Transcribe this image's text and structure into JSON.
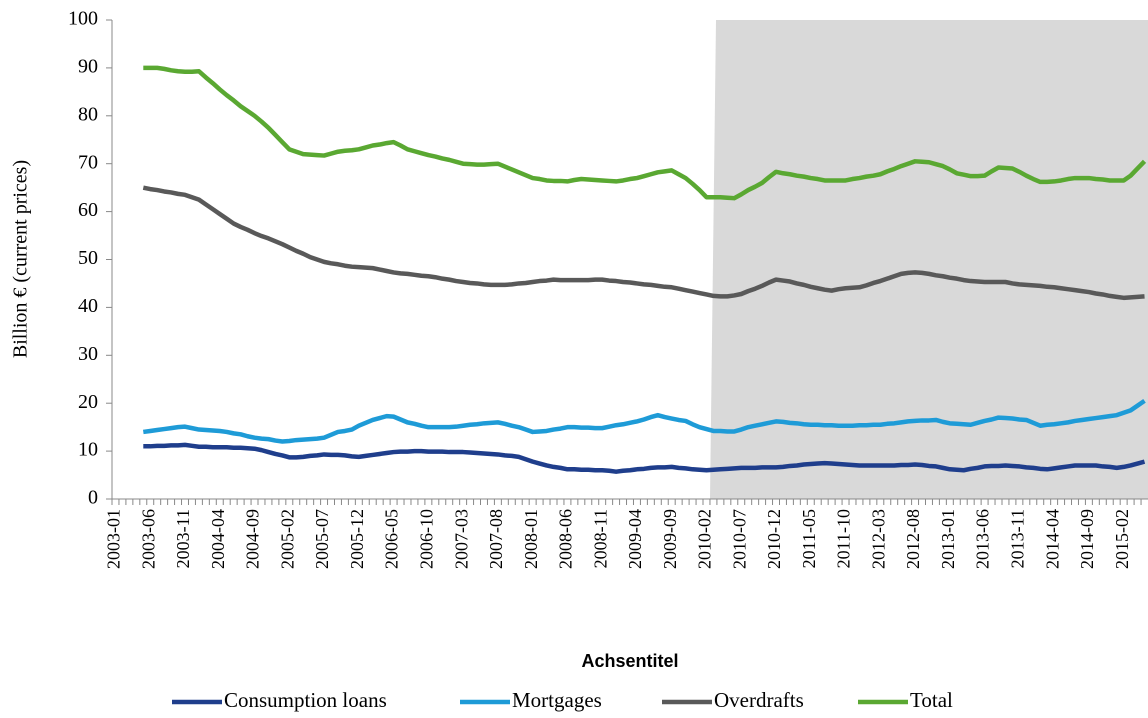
{
  "chart_data": {
    "type": "line",
    "x_label": "Achsentitel",
    "y_label": "Billion € (current prices)",
    "categories": [
      "2003-01",
      null,
      null,
      null,
      null,
      "2003-06",
      null,
      null,
      null,
      null,
      "2003-11",
      null,
      null,
      null,
      null,
      "2004-04",
      null,
      null,
      null,
      null,
      "2004-09",
      null,
      null,
      null,
      null,
      "2005-02",
      null,
      null,
      null,
      null,
      "2005-07",
      null,
      null,
      null,
      null,
      "2005-12",
      null,
      null,
      null,
      null,
      "2006-05",
      null,
      null,
      null,
      null,
      "2006-10",
      null,
      null,
      null,
      null,
      "2007-03",
      null,
      null,
      null,
      null,
      "2007-08",
      null,
      null,
      null,
      null,
      "2008-01",
      null,
      null,
      null,
      null,
      "2008-06",
      null,
      null,
      null,
      null,
      "2008-11",
      null,
      null,
      null,
      null,
      "2009-04",
      null,
      null,
      null,
      null,
      "2009-09",
      null,
      null,
      null,
      null,
      "2010-02",
      null,
      null,
      null,
      null,
      "2010-07",
      null,
      null,
      null,
      null,
      "2010-12",
      null,
      null,
      null,
      null,
      "2011-05",
      null,
      null,
      null,
      null,
      "2011-10",
      null,
      null,
      null,
      null,
      "2012-03",
      null,
      null,
      null,
      null,
      "2012-08",
      null,
      null,
      null,
      null,
      "2013-01",
      null,
      null,
      null,
      null,
      "2013-06",
      null,
      null,
      null,
      null,
      "2013-11",
      null,
      null,
      null,
      null,
      "2014-04",
      null,
      null,
      null,
      null,
      "2014-09",
      null,
      null,
      null,
      null,
      "2015-02",
      null,
      null,
      null
    ],
    "ylim": [
      0,
      100
    ],
    "yticks": [
      0,
      10,
      20,
      30,
      40,
      50,
      60,
      70,
      80,
      90,
      100
    ],
    "grid": false,
    "legend": "bottom",
    "series": [
      {
        "name": "Consumption loans",
        "color": "#1f3e8c",
        "values": [
          null,
          null,
          null,
          null,
          11,
          11,
          11.1,
          11.1,
          11.2,
          11.2,
          11.3,
          11.1,
          10.9,
          10.9,
          10.8,
          10.8,
          10.8,
          10.7,
          10.7,
          10.6,
          10.5,
          10.2,
          9.8,
          9.4,
          9.1,
          8.7,
          8.7,
          8.8,
          9,
          9.1,
          9.3,
          9.2,
          9.2,
          9.1,
          8.9,
          8.8,
          9,
          9.2,
          9.4,
          9.6,
          9.8,
          9.9,
          9.9,
          10,
          10,
          9.9,
          9.9,
          9.9,
          9.8,
          9.8,
          9.8,
          9.7,
          9.6,
          9.5,
          9.4,
          9.3,
          9.1,
          9,
          8.8,
          8.3,
          7.8,
          7.4,
          7,
          6.7,
          6.5,
          6.2,
          6.2,
          6.1,
          6.1,
          6,
          6,
          5.9,
          5.7,
          5.9,
          6,
          6.2,
          6.3,
          6.5,
          6.6,
          6.6,
          6.7,
          6.5,
          6.4,
          6.2,
          6.1,
          6,
          6.1,
          6.2,
          6.3,
          6.4,
          6.5,
          6.5,
          6.5,
          6.6,
          6.6,
          6.6,
          6.7,
          6.9,
          7,
          7.2,
          7.3,
          7.4,
          7.5,
          7.4,
          7.3,
          7.2,
          7.1,
          7,
          7,
          7,
          7,
          7,
          7,
          7.1,
          7.1,
          7.2,
          7.1,
          6.9,
          6.8,
          6.5,
          6.2,
          6.1,
          6,
          6.3,
          6.5,
          6.8,
          6.9,
          6.9,
          7,
          6.9,
          6.8,
          6.6,
          6.5,
          6.3,
          6.2,
          6.4,
          6.6,
          6.8,
          7,
          7,
          7,
          7,
          6.8,
          6.7,
          6.5,
          6.7,
          7,
          7.4,
          7.8
        ]
      },
      {
        "name": "Mortgages",
        "color": "#1e9bd7",
        "values": [
          null,
          null,
          null,
          null,
          14,
          14.2,
          14.4,
          14.6,
          14.8,
          15,
          15.1,
          14.8,
          14.5,
          14.4,
          14.3,
          14.2,
          14,
          13.7,
          13.5,
          13.1,
          12.8,
          12.6,
          12.5,
          12.2,
          12,
          12.1,
          12.3,
          12.4,
          12.5,
          12.6,
          12.8,
          13.4,
          14,
          14.2,
          14.5,
          15.3,
          15.9,
          16.5,
          16.9,
          17.3,
          17.2,
          16.6,
          16,
          15.7,
          15.3,
          15,
          15,
          15,
          15,
          15.1,
          15.3,
          15.5,
          15.6,
          15.8,
          15.9,
          16,
          15.7,
          15.3,
          15,
          14.5,
          14,
          14.1,
          14.2,
          14.5,
          14.7,
          15,
          15,
          14.9,
          14.9,
          14.8,
          14.8,
          15.1,
          15.4,
          15.6,
          15.9,
          16.2,
          16.6,
          17.1,
          17.5,
          17.1,
          16.8,
          16.5,
          16.3,
          15.6,
          15,
          14.6,
          14.2,
          14.2,
          14.1,
          14.1,
          14.5,
          15,
          15.3,
          15.6,
          15.9,
          16.2,
          16.1,
          15.9,
          15.8,
          15.6,
          15.5,
          15.5,
          15.4,
          15.4,
          15.3,
          15.3,
          15.3,
          15.4,
          15.4,
          15.5,
          15.5,
          15.7,
          15.8,
          16,
          16.2,
          16.3,
          16.4,
          16.4,
          16.5,
          16.1,
          15.8,
          15.7,
          15.6,
          15.5,
          15.9,
          16.3,
          16.6,
          17,
          16.9,
          16.8,
          16.6,
          16.5,
          15.9,
          15.3,
          15.5,
          15.6,
          15.8,
          16,
          16.3,
          16.5,
          16.7,
          16.9,
          17.1,
          17.3,
          17.5,
          18,
          18.5,
          19.5,
          20.5
        ]
      },
      {
        "name": "Overdrafts",
        "color": "#595959",
        "values": [
          null,
          null,
          null,
          null,
          65,
          64.7,
          64.5,
          64.2,
          64,
          63.7,
          63.5,
          63,
          62.5,
          61.5,
          60.5,
          59.5,
          58.5,
          57.5,
          56.8,
          56.2,
          55.5,
          54.9,
          54.4,
          53.8,
          53.2,
          52.5,
          51.8,
          51.2,
          50.5,
          50,
          49.5,
          49.2,
          49,
          48.7,
          48.5,
          48.4,
          48.3,
          48.2,
          47.9,
          47.6,
          47.3,
          47.1,
          47,
          46.8,
          46.6,
          46.5,
          46.3,
          46,
          45.8,
          45.5,
          45.3,
          45.1,
          45,
          44.8,
          44.7,
          44.7,
          44.7,
          44.8,
          45,
          45.1,
          45.3,
          45.5,
          45.6,
          45.8,
          45.7,
          45.7,
          45.7,
          45.7,
          45.7,
          45.8,
          45.8,
          45.6,
          45.5,
          45.3,
          45.2,
          45,
          44.8,
          44.7,
          44.5,
          44.3,
          44.2,
          43.9,
          43.6,
          43.3,
          43,
          42.7,
          42.4,
          42.3,
          42.3,
          42.5,
          42.8,
          43.4,
          43.9,
          44.5,
          45.2,
          45.8,
          45.6,
          45.4,
          45,
          44.7,
          44.3,
          44,
          43.7,
          43.5,
          43.8,
          44,
          44.1,
          44.2,
          44.6,
          45.1,
          45.5,
          46,
          46.5,
          47,
          47.2,
          47.3,
          47.2,
          47,
          46.7,
          46.5,
          46.2,
          46,
          45.7,
          45.5,
          45.4,
          45.3,
          45.3,
          45.3,
          45.3,
          45,
          44.8,
          44.7,
          44.6,
          44.5,
          44.3,
          44.2,
          44,
          43.8,
          43.6,
          43.4,
          43.2,
          42.9,
          42.7,
          42.4,
          42.2,
          42,
          42.1,
          42.2,
          42.3
        ]
      },
      {
        "name": "Total",
        "color": "#5aa832",
        "values": [
          null,
          null,
          null,
          null,
          90,
          90,
          90,
          89.8,
          89.5,
          89.3,
          89.2,
          89.2,
          89.3,
          88,
          86.8,
          85.5,
          84.3,
          83.2,
          82,
          81,
          80,
          78.8,
          77.5,
          76,
          74.5,
          73,
          72.5,
          72,
          71.9,
          71.8,
          71.7,
          72.1,
          72.5,
          72.7,
          72.8,
          73,
          73.4,
          73.8,
          74,
          74.3,
          74.5,
          73.8,
          73,
          72.6,
          72.2,
          71.8,
          71.5,
          71.1,
          70.8,
          70.4,
          70,
          69.9,
          69.8,
          69.8,
          69.9,
          70,
          69.4,
          68.8,
          68.2,
          67.6,
          67,
          66.8,
          66.5,
          66.4,
          66.4,
          66.3,
          66.6,
          66.8,
          66.7,
          66.6,
          66.5,
          66.4,
          66.3,
          66.5,
          66.8,
          67,
          67.4,
          67.8,
          68.2,
          68.4,
          68.6,
          67.8,
          67,
          65.8,
          64.5,
          63,
          63,
          63,
          62.9,
          62.8,
          63.6,
          64.5,
          65.2,
          66,
          67.2,
          68.3,
          68,
          67.8,
          67.5,
          67.3,
          67,
          66.8,
          66.5,
          66.5,
          66.5,
          66.5,
          66.8,
          67,
          67.3,
          67.5,
          67.8,
          68.4,
          68.9,
          69.5,
          70,
          70.5,
          70.4,
          70.3,
          69.9,
          69.5,
          68.8,
          68,
          67.7,
          67.4,
          67.4,
          67.5,
          68.4,
          69.2,
          69.1,
          69,
          68.3,
          67.5,
          66.8,
          66.2,
          66.2,
          66.3,
          66.5,
          66.8,
          67,
          67,
          67,
          66.8,
          66.7,
          66.5,
          66.5,
          66.5,
          67.5,
          69,
          70.5
        ]
      }
    ]
  }
}
